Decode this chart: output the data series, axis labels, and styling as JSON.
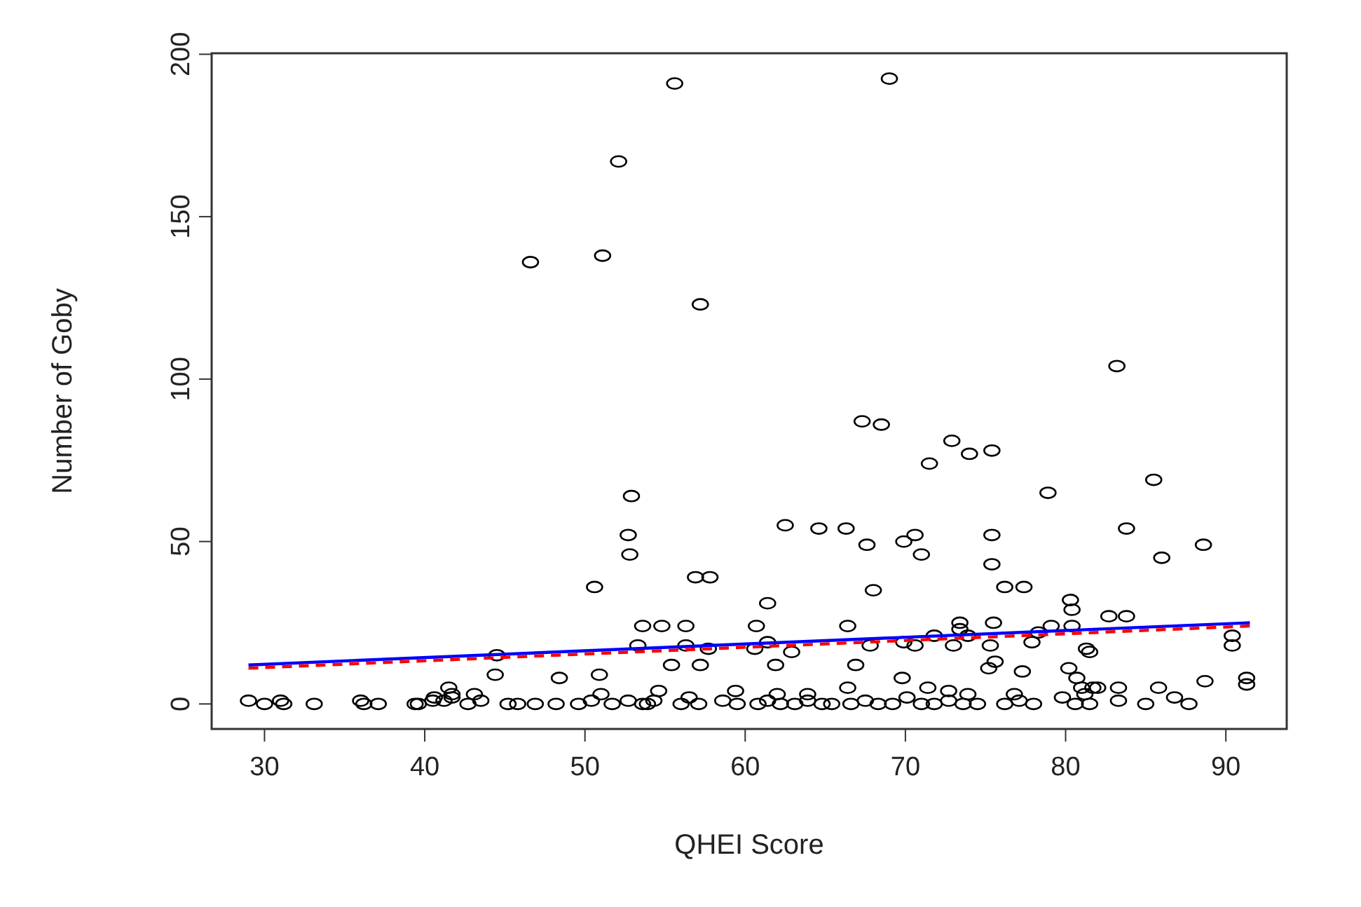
{
  "chart_data": {
    "type": "scatter",
    "xlabel": "QHEI Score",
    "ylabel": "Number of Goby",
    "xlim": [
      26.7,
      93.8
    ],
    "ylim": [
      -7.7,
      200.3
    ],
    "xticks": [
      30,
      40,
      50,
      60,
      70,
      80,
      90
    ],
    "yticks": [
      0,
      50,
      100,
      150,
      200
    ],
    "grid": false,
    "series": [
      {
        "color": "#000000",
        "marker": "circle",
        "x": [
          55.6,
          69.0,
          52.1,
          46.6,
          51.1,
          57.2,
          83.2,
          67.3,
          68.5,
          72.9,
          74.0,
          75.4,
          71.5,
          78.9,
          85.5,
          52.9,
          52.7,
          52.8,
          62.5,
          64.6,
          66.3,
          67.6,
          69.9,
          70.6,
          71.0,
          75.4,
          75.4,
          83.8,
          86.0,
          88.6,
          50.6,
          56.9,
          57.8,
          68.0,
          76.2,
          77.4,
          61.4,
          80.4,
          82.7,
          83.8,
          80.3,
          53.6,
          54.8,
          56.3,
          60.7,
          66.4,
          73.4,
          73.4,
          75.5,
          79.1,
          80.4,
          90.4,
          90.4,
          60.6,
          44.5,
          53.3,
          61.4,
          62.9,
          70.6,
          73.0,
          75.3,
          81.3,
          81.5,
          67.8,
          73.9,
          71.8,
          69.9,
          77.9,
          78.3,
          57.7,
          88.7,
          50.9,
          44.4,
          48.4,
          55.4,
          56.3,
          57.2,
          61.9,
          75.2,
          69.8,
          66.4,
          66.9,
          80.2,
          75.6,
          77.3,
          80.7,
          81.0,
          82.0,
          91.3,
          91.3,
          85.8,
          81.7,
          41.7,
          41.5,
          43.1,
          40.6,
          51.0,
          54.6,
          59.4,
          62.0,
          63.9,
          72.7,
          71.4,
          73.9,
          76.8,
          81.2,
          83.3,
          29.0,
          30.0,
          31.0,
          31.2,
          33.1,
          36.0,
          36.2,
          37.1,
          39.4,
          39.6,
          40.5,
          41.2,
          41.7,
          42.7,
          43.5,
          45.2,
          45.8,
          46.9,
          48.2,
          49.6,
          50.4,
          51.7,
          52.7,
          53.6,
          53.9,
          54.3,
          56.0,
          56.5,
          57.1,
          58.6,
          59.5,
          60.8,
          61.4,
          62.2,
          63.1,
          63.9,
          64.8,
          65.4,
          66.6,
          67.5,
          68.3,
          69.2,
          70.1,
          71.0,
          71.8,
          72.7,
          73.6,
          74.5,
          76.2,
          77.1,
          78.0,
          79.8,
          80.6,
          81.5,
          83.3,
          85.0,
          86.8,
          87.7
        ],
        "values": [
          191,
          192.5,
          167,
          136,
          138,
          123,
          104,
          87,
          86,
          81,
          77,
          78,
          74,
          65,
          69,
          64,
          52,
          46,
          55,
          54,
          54,
          49,
          50,
          52,
          46,
          52,
          43,
          54,
          45,
          49,
          36,
          39,
          39,
          35,
          36,
          36,
          31,
          29,
          27,
          27,
          32,
          24,
          24,
          24,
          24,
          24,
          25,
          23,
          25,
          24,
          24,
          21,
          18,
          17,
          15,
          18,
          19,
          16,
          18,
          18,
          18,
          17,
          16,
          18,
          21,
          21,
          19,
          19,
          22,
          17,
          7,
          9,
          9,
          8,
          12,
          18,
          12,
          12,
          11,
          8,
          5,
          12,
          11,
          13,
          10,
          8,
          5,
          5,
          6,
          8,
          5,
          5,
          3,
          5,
          3,
          2,
          3,
          4,
          4,
          3,
          3,
          4,
          5,
          3,
          3,
          3,
          5,
          1,
          0,
          1,
          0,
          0,
          1,
          0,
          0,
          0,
          0,
          1,
          1,
          2,
          0,
          1,
          0,
          0,
          0,
          0,
          0,
          1,
          0,
          1,
          0,
          0,
          1,
          0,
          2,
          0,
          1,
          0,
          0,
          1,
          0,
          0,
          1,
          0,
          0,
          0,
          1,
          0,
          0,
          2,
          0,
          0,
          1,
          0,
          0,
          0,
          1,
          0,
          2,
          0,
          0,
          1,
          0,
          2,
          0
        ]
      },
      {
        "type": "line",
        "color": "#0000ff",
        "line_style": "solid",
        "marker": "none",
        "x": [
          29,
          91.5
        ],
        "values": [
          12,
          25
        ]
      },
      {
        "type": "line",
        "color": "#ff0000",
        "line_style": "dashed",
        "marker": "none",
        "x": [
          29,
          91.5
        ],
        "values": [
          11,
          24
        ]
      }
    ]
  }
}
